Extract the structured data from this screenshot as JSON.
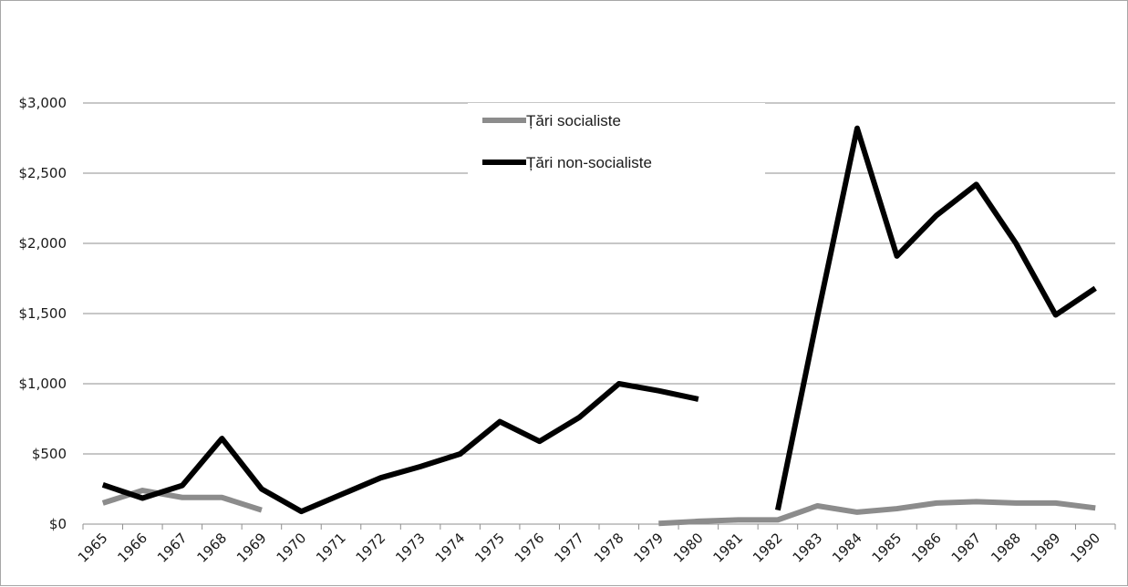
{
  "chart_data": {
    "type": "line",
    "title": "",
    "xlabel": "",
    "ylabel": "",
    "categories": [
      "1965",
      "1966",
      "1967",
      "1968",
      "1969",
      "1970",
      "1971",
      "1972",
      "1973",
      "1974",
      "1975",
      "1976",
      "1977",
      "1978",
      "1979",
      "1980",
      "1981",
      "1982",
      "1983",
      "1984",
      "1985",
      "1986",
      "1987",
      "1988",
      "1989",
      "1990"
    ],
    "ylim": [
      0,
      3000
    ],
    "y_ticks": [
      0,
      500,
      1000,
      1500,
      2000,
      2500,
      3000
    ],
    "y_tick_labels": [
      "$0",
      "$500",
      "$1,000",
      "$1,500",
      "$2,000",
      "$2,500",
      "$3,000"
    ],
    "grid": "horizontal",
    "legend_position": "top-center",
    "series": [
      {
        "name": "Țări socialiste",
        "color": "#8c8c8c",
        "values": [
          150,
          240,
          190,
          190,
          100,
          null,
          null,
          null,
          null,
          null,
          null,
          null,
          null,
          null,
          5,
          20,
          30,
          30,
          130,
          85,
          110,
          150,
          160,
          150,
          150,
          115
        ]
      },
      {
        "name": "Țări non-socialiste",
        "color": "#000000",
        "values": [
          280,
          185,
          275,
          610,
          250,
          90,
          210,
          330,
          410,
          500,
          730,
          590,
          760,
          1000,
          950,
          890,
          null,
          100,
          1480,
          2820,
          1910,
          2200,
          2420,
          2000,
          1490,
          1680
        ]
      }
    ]
  }
}
